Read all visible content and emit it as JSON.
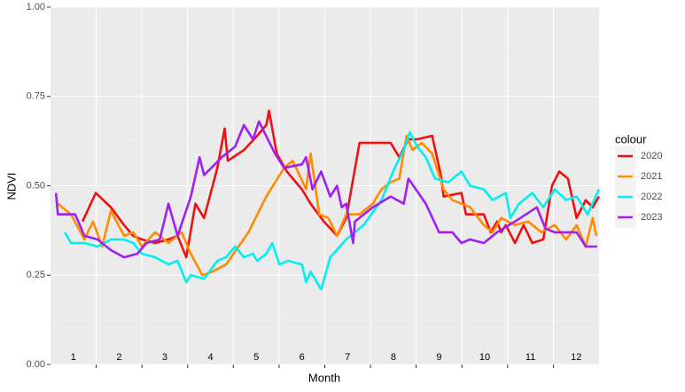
{
  "chart_data": {
    "type": "line",
    "xlabel": "Month",
    "ylabel": "NDVI",
    "legend_title": "colour",
    "xlim": [
      0,
      12
    ],
    "xticks": [
      1,
      2,
      3,
      4,
      5,
      6,
      7,
      8,
      9,
      10,
      11
    ],
    "month_labels": [
      "1",
      "2",
      "3",
      "4",
      "5",
      "6",
      "7",
      "8",
      "9",
      "10",
      "11",
      "12"
    ],
    "ylim": [
      0,
      1
    ],
    "yticks": [
      {
        "value": 0,
        "label": "0.00"
      },
      {
        "value": 0.25,
        "label": "0.25"
      },
      {
        "value": 0.5,
        "label": "0.50"
      },
      {
        "value": 0.75,
        "label": "0.75"
      },
      {
        "value": 1,
        "label": "1.00"
      }
    ],
    "grid": true,
    "series": [
      {
        "name": "2020",
        "color": "#ee1111",
        "x": [
          0.7,
          0.99,
          1.32,
          1.61,
          1.81,
          2.0,
          2.29,
          2.58,
          2.78,
          2.97,
          3.17,
          3.36,
          3.65,
          3.81,
          3.88,
          4.23,
          4.52,
          4.72,
          4.78,
          4.95,
          5.17,
          5.5,
          5.69,
          5.98,
          6.27,
          6.47,
          6.76,
          7.05,
          7.44,
          7.63,
          7.83,
          8.02,
          8.35,
          8.54,
          8.6,
          8.99,
          9.09,
          9.48,
          9.63,
          9.77,
          9.86,
          9.96,
          10.16,
          10.35,
          10.54,
          10.78,
          10.97,
          11.13,
          11.32,
          11.51,
          11.71,
          11.86,
          12.0
        ],
        "values": [
          0.4,
          0.48,
          0.44,
          0.39,
          0.36,
          0.35,
          0.34,
          0.35,
          0.36,
          0.3,
          0.45,
          0.41,
          0.55,
          0.66,
          0.57,
          0.6,
          0.64,
          0.67,
          0.71,
          0.59,
          0.54,
          0.49,
          0.45,
          0.4,
          0.36,
          0.41,
          0.62,
          0.62,
          0.62,
          0.58,
          0.63,
          0.63,
          0.64,
          0.53,
          0.47,
          0.48,
          0.42,
          0.42,
          0.37,
          0.4,
          0.37,
          0.39,
          0.34,
          0.39,
          0.34,
          0.35,
          0.5,
          0.54,
          0.52,
          0.41,
          0.46,
          0.44,
          0.47
        ]
      },
      {
        "name": "2021",
        "color": "#ff8c00",
        "x": [
          0.16,
          0.45,
          0.74,
          0.93,
          1.13,
          1.32,
          1.61,
          1.81,
          2.0,
          2.29,
          2.58,
          2.87,
          3.07,
          3.32,
          3.55,
          3.84,
          4.33,
          4.72,
          5.11,
          5.3,
          5.59,
          5.69,
          5.88,
          6.08,
          6.27,
          6.47,
          6.76,
          7.05,
          7.24,
          7.44,
          7.63,
          7.79,
          7.92,
          8.12,
          8.35,
          8.6,
          8.79,
          8.99,
          9.18,
          9.48,
          9.67,
          9.86,
          10.16,
          10.45,
          10.74,
          11.03,
          11.28,
          11.51,
          11.71,
          11.86,
          11.94
        ],
        "values": [
          0.45,
          0.42,
          0.35,
          0.4,
          0.33,
          0.43,
          0.36,
          0.37,
          0.33,
          0.37,
          0.34,
          0.37,
          0.31,
          0.25,
          0.26,
          0.28,
          0.37,
          0.47,
          0.55,
          0.57,
          0.49,
          0.59,
          0.42,
          0.41,
          0.36,
          0.42,
          0.42,
          0.45,
          0.49,
          0.51,
          0.52,
          0.64,
          0.6,
          0.62,
          0.59,
          0.49,
          0.46,
          0.45,
          0.44,
          0.39,
          0.37,
          0.41,
          0.39,
          0.4,
          0.37,
          0.39,
          0.35,
          0.39,
          0.33,
          0.41,
          0.36
        ]
      },
      {
        "name": "2022",
        "color": "#00f0f0",
        "x": [
          0.31,
          0.45,
          0.74,
          1.03,
          1.32,
          1.61,
          1.81,
          2.0,
          2.29,
          2.58,
          2.78,
          2.97,
          3.07,
          3.36,
          3.65,
          3.84,
          4.04,
          4.23,
          4.43,
          4.52,
          4.72,
          4.85,
          5.01,
          5.2,
          5.5,
          5.59,
          5.69,
          5.92,
          6.12,
          6.47,
          6.85,
          7.24,
          7.53,
          7.73,
          7.86,
          8.02,
          8.21,
          8.41,
          8.7,
          8.99,
          9.18,
          9.48,
          9.67,
          9.96,
          10.06,
          10.25,
          10.54,
          10.78,
          11.03,
          11.28,
          11.51,
          11.75,
          12.0
        ],
        "values": [
          0.37,
          0.34,
          0.34,
          0.33,
          0.35,
          0.35,
          0.34,
          0.31,
          0.3,
          0.28,
          0.29,
          0.23,
          0.25,
          0.24,
          0.29,
          0.3,
          0.33,
          0.3,
          0.31,
          0.29,
          0.31,
          0.34,
          0.28,
          0.29,
          0.28,
          0.23,
          0.26,
          0.21,
          0.3,
          0.35,
          0.39,
          0.46,
          0.55,
          0.6,
          0.65,
          0.61,
          0.58,
          0.52,
          0.51,
          0.54,
          0.5,
          0.49,
          0.46,
          0.48,
          0.41,
          0.45,
          0.48,
          0.44,
          0.49,
          0.46,
          0.47,
          0.42,
          0.49
        ]
      },
      {
        "name": "2023",
        "color": "#a020f0",
        "x": [
          0.12,
          0.16,
          0.35,
          0.54,
          0.74,
          1.03,
          1.32,
          1.61,
          1.9,
          2.1,
          2.39,
          2.58,
          2.78,
          3.07,
          3.26,
          3.36,
          3.75,
          4.04,
          4.23,
          4.43,
          4.56,
          4.91,
          5.11,
          5.5,
          5.59,
          5.73,
          5.92,
          6.12,
          6.27,
          6.37,
          6.47,
          6.62,
          6.66,
          7.05,
          7.44,
          7.73,
          7.83,
          8.21,
          8.5,
          8.79,
          8.99,
          9.18,
          9.48,
          9.77,
          10.16,
          10.64,
          10.83,
          11.03,
          11.51,
          11.71,
          11.96
        ],
        "values": [
          0.48,
          0.42,
          0.42,
          0.42,
          0.36,
          0.35,
          0.32,
          0.3,
          0.31,
          0.34,
          0.35,
          0.45,
          0.36,
          0.47,
          0.58,
          0.53,
          0.58,
          0.61,
          0.67,
          0.63,
          0.68,
          0.59,
          0.55,
          0.56,
          0.58,
          0.49,
          0.54,
          0.47,
          0.5,
          0.44,
          0.45,
          0.34,
          0.4,
          0.44,
          0.47,
          0.45,
          0.52,
          0.45,
          0.37,
          0.37,
          0.34,
          0.35,
          0.34,
          0.37,
          0.4,
          0.44,
          0.38,
          0.37,
          0.37,
          0.33,
          0.33
        ]
      }
    ]
  }
}
